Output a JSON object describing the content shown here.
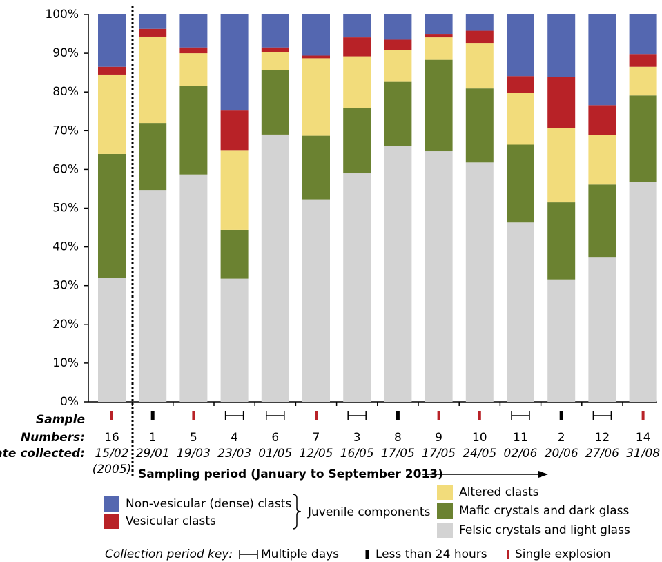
{
  "chart_data": {
    "type": "stacked_bar",
    "ylim": [
      0,
      100
    ],
    "yticks": [
      {
        "value": 0,
        "label": "0%"
      },
      {
        "value": 10,
        "label": "10%"
      },
      {
        "value": 20,
        "label": "20%"
      },
      {
        "value": 30,
        "label": "30%"
      },
      {
        "value": 40,
        "label": "40%"
      },
      {
        "value": 50,
        "label": "50%"
      },
      {
        "value": 60,
        "label": "60%"
      },
      {
        "value": 70,
        "label": "70%"
      },
      {
        "value": 80,
        "label": "80%"
      },
      {
        "value": 90,
        "label": "90%"
      },
      {
        "value": 100,
        "label": "100%"
      }
    ],
    "categories": [
      "16",
      "1",
      "5",
      "4",
      "6",
      "7",
      "3",
      "8",
      "9",
      "10",
      "11",
      "2",
      "12",
      "14"
    ],
    "dates": [
      "15/02",
      "29/01",
      "19/03",
      "23/03",
      "01/05",
      "12/05",
      "16/05",
      "17/05",
      "17/05",
      "24/05",
      "02/06",
      "20/06",
      "27/06",
      "31/08"
    ],
    "date_note": "(2005)",
    "row_labels": {
      "sample": "Sample",
      "numbers": "Numbers:",
      "date": "Date collected:"
    },
    "period_label": "Sampling period (January to September 2013)",
    "series": [
      {
        "name": "Felsic crystals and light glass",
        "color": "#d3d3d3",
        "values": [
          32,
          54.7,
          58.7,
          31.8,
          69,
          52.3,
          59,
          66.1,
          64.7,
          61.8,
          46.3,
          31.6,
          37.4,
          56.7
        ]
      },
      {
        "name": "Mafic crystals and dark glass",
        "color": "#6b8231",
        "values": [
          32,
          17.3,
          22.9,
          12.6,
          16.7,
          16.4,
          16.8,
          16.5,
          23.6,
          19.1,
          20.1,
          19.9,
          18.7,
          22.4
        ]
      },
      {
        "name": "Altered clasts",
        "color": "#f2dc7b",
        "values": [
          20.5,
          22.3,
          8.4,
          20.6,
          4.5,
          20,
          13.4,
          8.3,
          5.8,
          11.6,
          13.3,
          19.1,
          12.8,
          7.4
        ]
      },
      {
        "name": "Vesicular clasts",
        "color": "#b82227",
        "values": [
          2,
          2,
          1.5,
          10.2,
          1.3,
          0.7,
          4.9,
          2.6,
          0.9,
          3.3,
          4.4,
          13.2,
          7.7,
          3.3
        ]
      },
      {
        "name": "Non-vesicular (dense) clasts",
        "color": "#5467b0",
        "values": [
          13.5,
          3.7,
          8.5,
          24.8,
          8.5,
          10.6,
          5.9,
          6.5,
          5,
          4.2,
          15.9,
          16.2,
          23.4,
          10.2
        ]
      }
    ],
    "group_label": "Juvenile components",
    "period_key_title": "Collection period key:",
    "period_key": [
      {
        "label": "Multiple days",
        "color": "#000000"
      },
      {
        "label": "Less than 24 hours",
        "color": "#000000"
      },
      {
        "label": "Single explosion",
        "color": "#b82227"
      }
    ],
    "collection_period": [
      2,
      1,
      2,
      0,
      0,
      2,
      0,
      1,
      2,
      2,
      0,
      1,
      0,
      2
    ]
  }
}
